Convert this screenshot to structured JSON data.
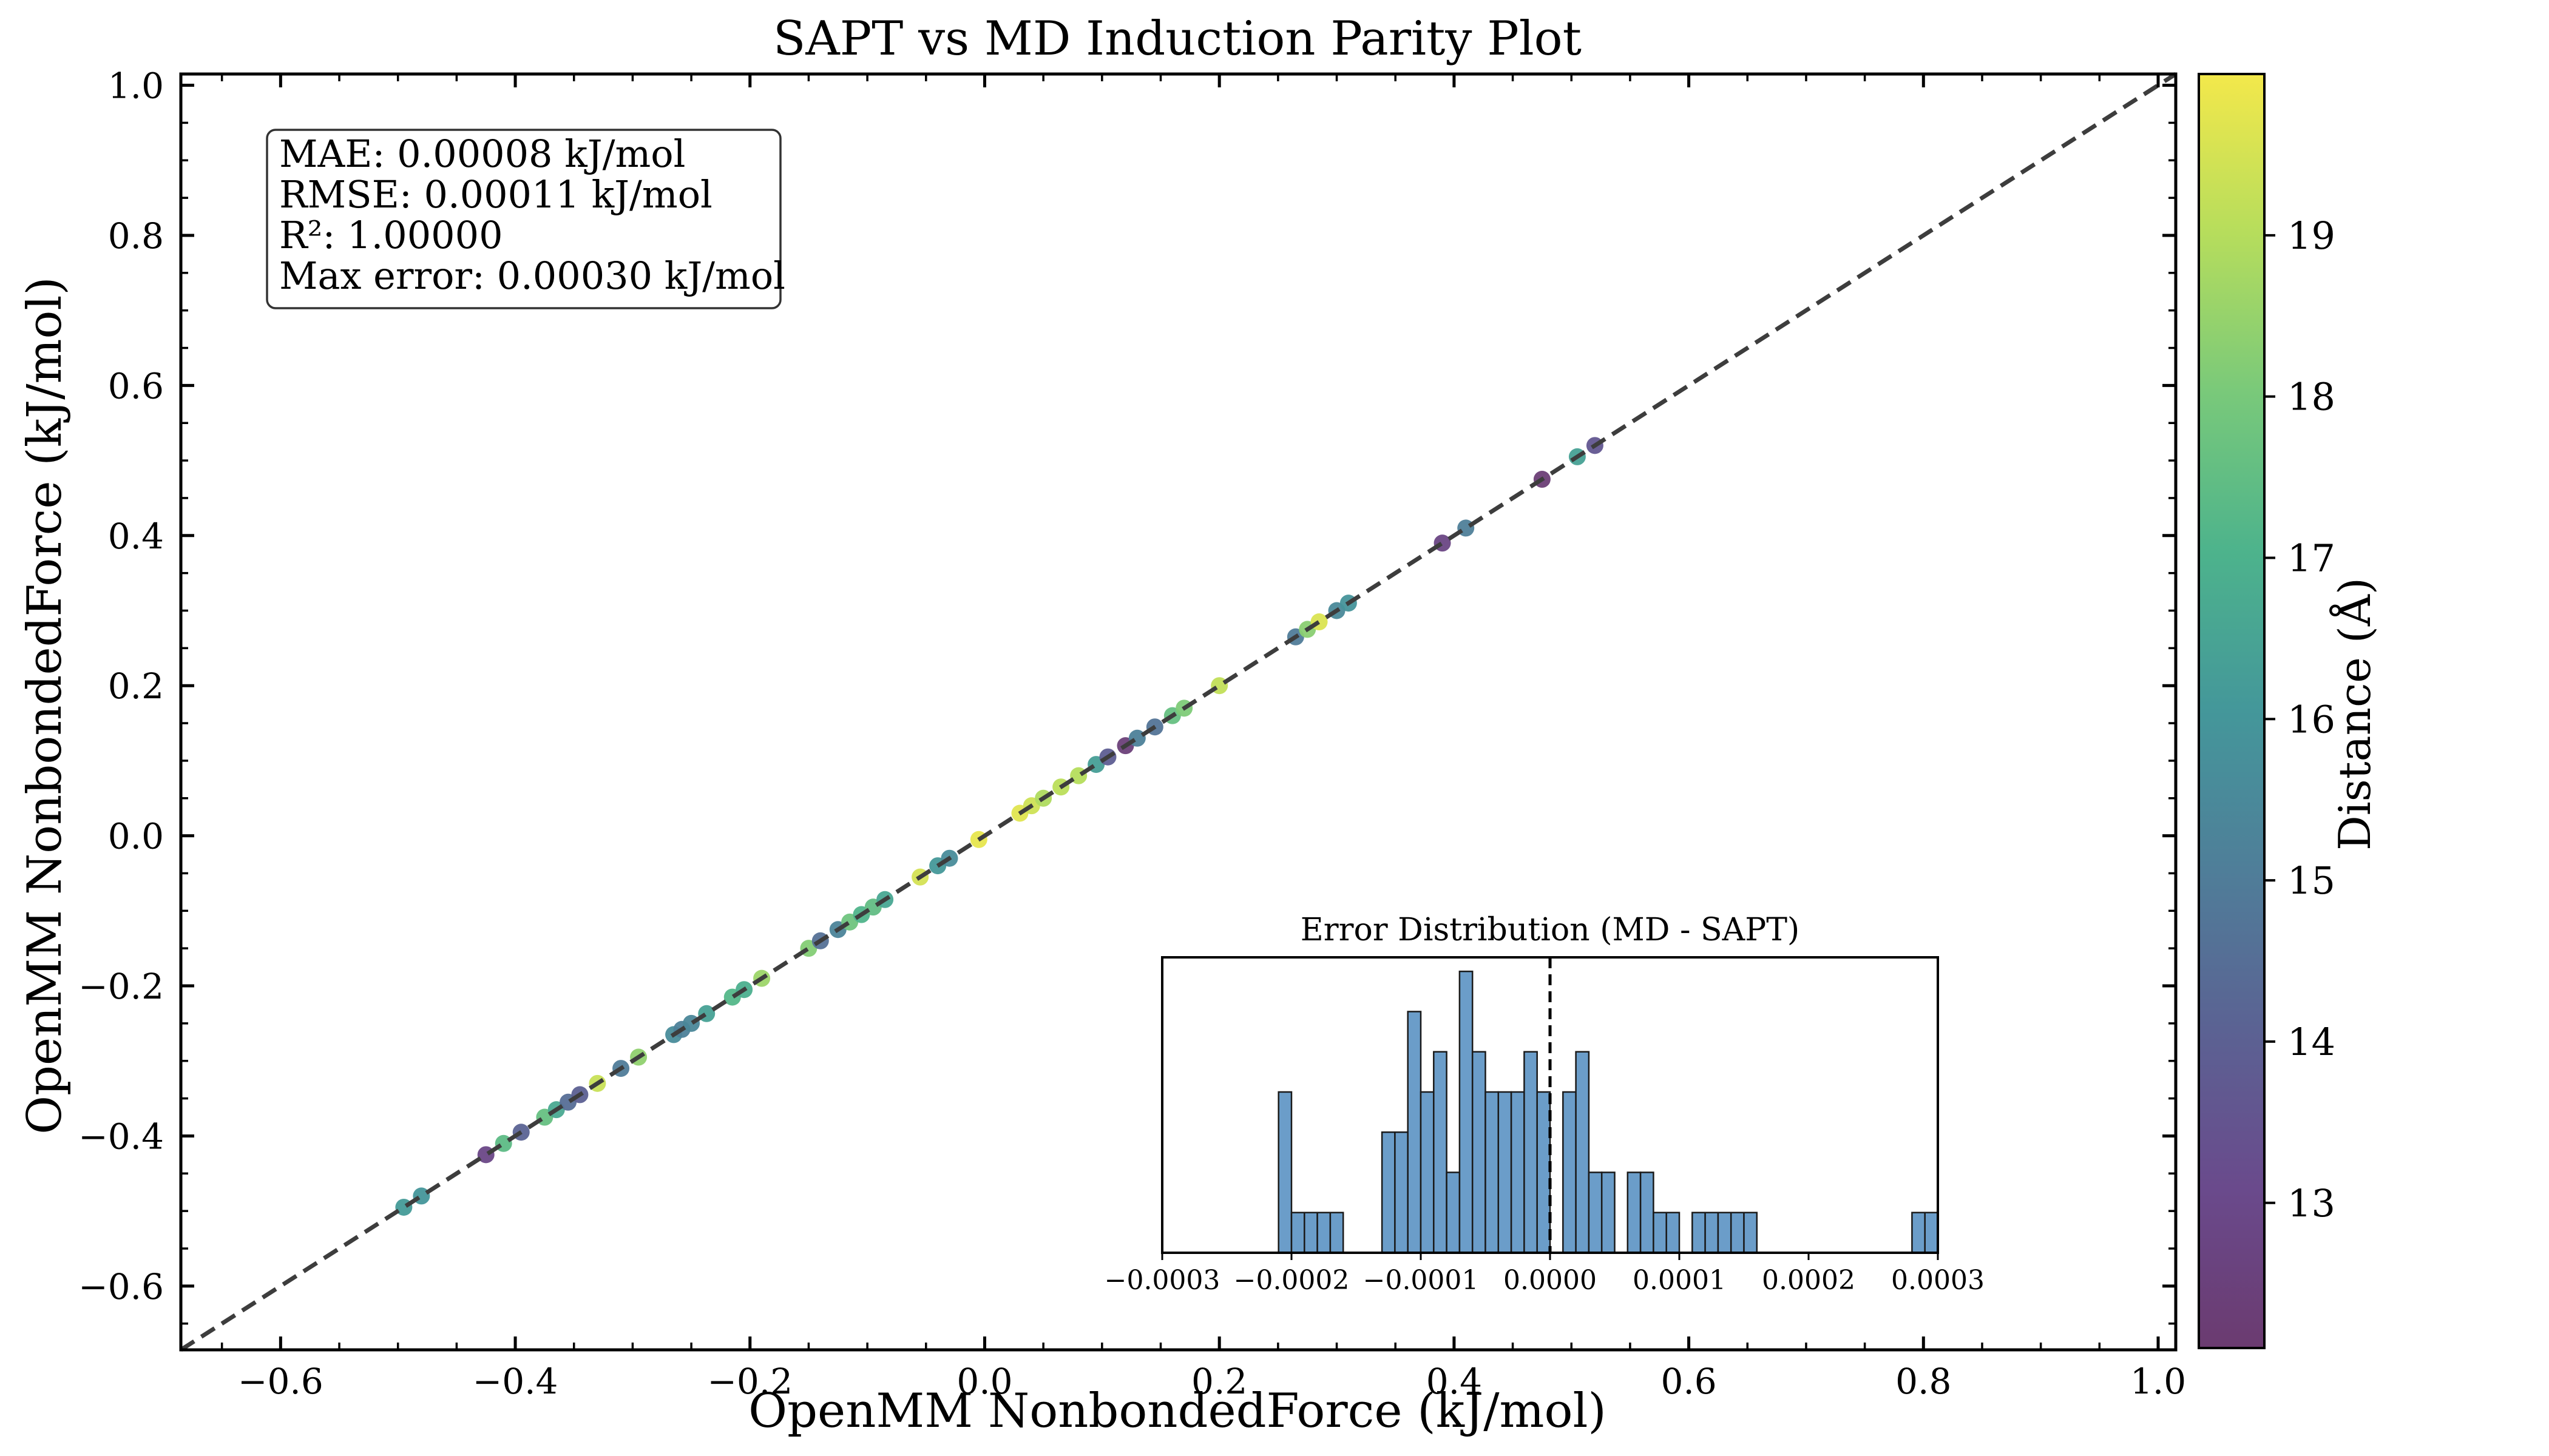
{
  "chart_data": {
    "type": "scatter",
    "title": "SAPT vs MD Induction Parity Plot",
    "xlabel": "OpenMM NonbondedForce (kJ/mol)",
    "ylabel": "OpenMM NonbondedForce (kJ/mol)",
    "xlim": [
      -0.685,
      1.015
    ],
    "ylim": [
      -0.685,
      1.015
    ],
    "x_ticks": [
      -0.6,
      -0.4,
      -0.2,
      0.0,
      0.2,
      0.4,
      0.6,
      0.8,
      1.0
    ],
    "y_ticks": [
      -0.6,
      -0.4,
      -0.2,
      0.0,
      0.2,
      0.4,
      0.6,
      0.8,
      1.0
    ],
    "grid": false,
    "parity_line": {
      "style": "dashed",
      "color": "#3d3d3d"
    },
    "stats_box": [
      "MAE: 0.00008 kJ/mol",
      "RMSE: 0.00011 kJ/mol",
      "R²: 1.00000",
      "Max error: 0.00030 kJ/mol"
    ],
    "colorbar": {
      "label": "Distance (Å)",
      "colormap": "viridis",
      "range": [
        12.1,
        20.0
      ],
      "ticks": [
        13,
        14,
        15,
        16,
        17,
        18,
        19
      ]
    },
    "points": [
      {
        "x": -0.495,
        "y": -0.495,
        "d": 16.2
      },
      {
        "x": -0.48,
        "y": -0.48,
        "d": 16.0
      },
      {
        "x": -0.425,
        "y": -0.425,
        "d": 12.9
      },
      {
        "x": -0.41,
        "y": -0.41,
        "d": 17.4
      },
      {
        "x": -0.395,
        "y": -0.395,
        "d": 14.1
      },
      {
        "x": -0.375,
        "y": -0.375,
        "d": 17.6
      },
      {
        "x": -0.365,
        "y": -0.365,
        "d": 16.7
      },
      {
        "x": -0.355,
        "y": -0.355,
        "d": 14.5
      },
      {
        "x": -0.345,
        "y": -0.345,
        "d": 14.0
      },
      {
        "x": -0.33,
        "y": -0.33,
        "d": 19.3
      },
      {
        "x": -0.31,
        "y": -0.31,
        "d": 15.0
      },
      {
        "x": -0.295,
        "y": -0.295,
        "d": 18.4
      },
      {
        "x": -0.265,
        "y": -0.265,
        "d": 15.6
      },
      {
        "x": -0.258,
        "y": -0.258,
        "d": 15.2
      },
      {
        "x": -0.25,
        "y": -0.25,
        "d": 15.4
      },
      {
        "x": -0.237,
        "y": -0.237,
        "d": 16.4
      },
      {
        "x": -0.215,
        "y": -0.215,
        "d": 17.2
      },
      {
        "x": -0.205,
        "y": -0.205,
        "d": 16.9
      },
      {
        "x": -0.19,
        "y": -0.19,
        "d": 18.6
      },
      {
        "x": -0.15,
        "y": -0.15,
        "d": 18.2
      },
      {
        "x": -0.14,
        "y": -0.14,
        "d": 14.6
      },
      {
        "x": -0.125,
        "y": -0.125,
        "d": 15.3
      },
      {
        "x": -0.115,
        "y": -0.115,
        "d": 17.8
      },
      {
        "x": -0.105,
        "y": -0.105,
        "d": 17.1
      },
      {
        "x": -0.095,
        "y": -0.095,
        "d": 17.5
      },
      {
        "x": -0.085,
        "y": -0.085,
        "d": 16.6
      },
      {
        "x": -0.055,
        "y": -0.055,
        "d": 19.5
      },
      {
        "x": -0.04,
        "y": -0.04,
        "d": 16.1
      },
      {
        "x": -0.03,
        "y": -0.03,
        "d": 15.6
      },
      {
        "x": -0.005,
        "y": -0.005,
        "d": 19.8
      },
      {
        "x": 0.03,
        "y": 0.03,
        "d": 19.7
      },
      {
        "x": 0.04,
        "y": 0.04,
        "d": 19.4
      },
      {
        "x": 0.05,
        "y": 0.05,
        "d": 18.9
      },
      {
        "x": 0.065,
        "y": 0.065,
        "d": 19.1
      },
      {
        "x": 0.08,
        "y": 0.08,
        "d": 19.0
      },
      {
        "x": 0.095,
        "y": 0.095,
        "d": 16.3
      },
      {
        "x": 0.105,
        "y": 0.105,
        "d": 13.9
      },
      {
        "x": 0.12,
        "y": 0.12,
        "d": 12.4
      },
      {
        "x": 0.13,
        "y": 0.13,
        "d": 15.2
      },
      {
        "x": 0.145,
        "y": 0.145,
        "d": 14.7
      },
      {
        "x": 0.16,
        "y": 0.16,
        "d": 17.6
      },
      {
        "x": 0.17,
        "y": 0.17,
        "d": 18.1
      },
      {
        "x": 0.2,
        "y": 0.2,
        "d": 19.2
      },
      {
        "x": 0.265,
        "y": 0.265,
        "d": 15.0
      },
      {
        "x": 0.275,
        "y": 0.275,
        "d": 18.3
      },
      {
        "x": 0.285,
        "y": 0.285,
        "d": 19.6
      },
      {
        "x": 0.3,
        "y": 0.3,
        "d": 15.5
      },
      {
        "x": 0.31,
        "y": 0.31,
        "d": 15.9
      },
      {
        "x": 0.39,
        "y": 0.39,
        "d": 12.8
      },
      {
        "x": 0.41,
        "y": 0.41,
        "d": 15.1
      },
      {
        "x": 0.475,
        "y": 0.475,
        "d": 12.3
      },
      {
        "x": 0.505,
        "y": 0.505,
        "d": 16.4
      },
      {
        "x": 0.52,
        "y": 0.52,
        "d": 13.6
      }
    ],
    "inset": {
      "type": "histogram",
      "title": "Error Distribution (MD - SAPT)",
      "xlim": [
        -0.0003,
        0.0003
      ],
      "x_ticks": [
        "−0.0003",
        "−0.0002",
        "−0.0001",
        "0.0000",
        "0.0001",
        "0.0002",
        "0.0003"
      ],
      "x_tick_values": [
        -0.0003,
        -0.0002,
        -0.0001,
        0.0,
        0.0001,
        0.0002,
        0.0003
      ],
      "zero_line": "dashed",
      "bin_width": 1e-05,
      "bins": [
        {
          "start": -0.00021,
          "count": 4
        },
        {
          "start": -0.0002,
          "count": 1
        },
        {
          "start": -0.00019,
          "count": 1
        },
        {
          "start": -0.00018,
          "count": 1
        },
        {
          "start": -0.00017,
          "count": 1
        },
        {
          "start": -0.00013,
          "count": 3
        },
        {
          "start": -0.00012,
          "count": 3
        },
        {
          "start": -0.00011,
          "count": 6
        },
        {
          "start": -0.0001,
          "count": 4
        },
        {
          "start": -9e-05,
          "count": 5
        },
        {
          "start": -8e-05,
          "count": 2
        },
        {
          "start": -7e-05,
          "count": 7
        },
        {
          "start": -6e-05,
          "count": 5
        },
        {
          "start": -5e-05,
          "count": 4
        },
        {
          "start": -4e-05,
          "count": 4
        },
        {
          "start": -3e-05,
          "count": 4
        },
        {
          "start": -2e-05,
          "count": 5
        },
        {
          "start": -1e-05,
          "count": 4
        },
        {
          "start": 1e-05,
          "count": 4
        },
        {
          "start": 2e-05,
          "count": 5
        },
        {
          "start": 3e-05,
          "count": 2
        },
        {
          "start": 4e-05,
          "count": 2
        },
        {
          "start": 6e-05,
          "count": 2
        },
        {
          "start": 7e-05,
          "count": 2
        },
        {
          "start": 8e-05,
          "count": 1
        },
        {
          "start": 9e-05,
          "count": 1
        },
        {
          "start": 0.00011,
          "count": 1
        },
        {
          "start": 0.00012,
          "count": 1
        },
        {
          "start": 0.00013,
          "count": 1
        },
        {
          "start": 0.00014,
          "count": 1
        },
        {
          "start": 0.00015,
          "count": 1
        },
        {
          "start": 0.00028,
          "count": 1
        },
        {
          "start": 0.00029,
          "count": 1
        }
      ]
    }
  }
}
